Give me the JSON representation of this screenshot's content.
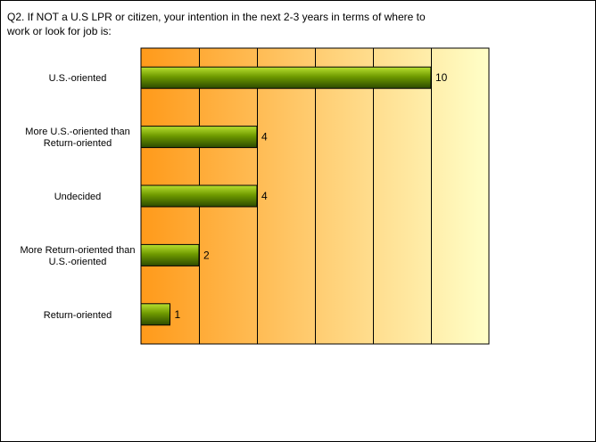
{
  "chart_data": {
    "type": "bar",
    "orientation": "horizontal",
    "title": "Q2. If NOT a U.S LPR or citizen, your intention in the next 2-3 years in terms of where to\nwork or look for job is:",
    "categories": [
      [
        "U.S.-oriented"
      ],
      [
        "More U.S.-oriented than",
        "Return-oriented"
      ],
      [
        "Undecided"
      ],
      [
        "More Return-oriented than",
        "U.S.-oriented"
      ],
      [
        "Return-oriented"
      ]
    ],
    "values": [
      10,
      4,
      4,
      2,
      1
    ],
    "data_labels": [
      "10",
      "4",
      "4",
      "2",
      "1"
    ],
    "xlim": [
      0,
      12
    ],
    "x_gridline_step": 2,
    "grid": true,
    "axis_tick_labels_shown": false,
    "legend": "none",
    "colors": {
      "bar_light": "#b8e030",
      "bar_mid": "#6f9a00",
      "bar_dark": "#2d4a00",
      "bar_border": "#000000",
      "background_left": "#ff9a1a",
      "background_right": "#ffffc8",
      "gridline": "#000000"
    }
  }
}
